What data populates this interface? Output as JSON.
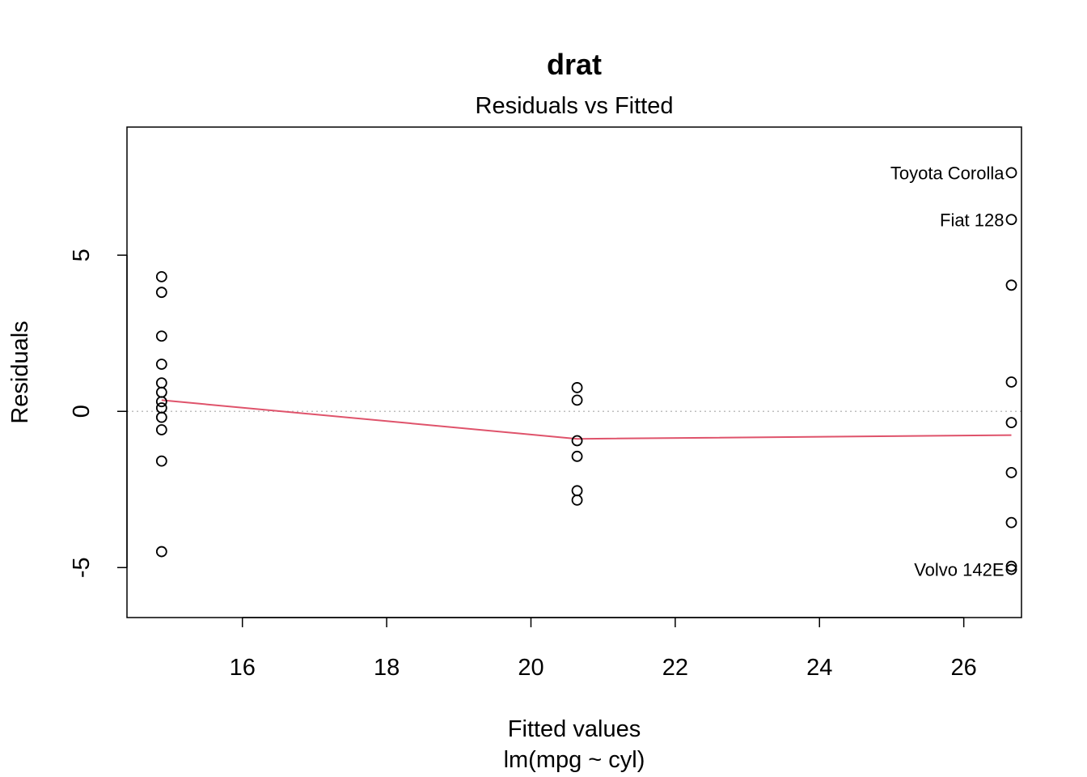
{
  "chart_data": {
    "type": "scatter",
    "title": "drat",
    "subtitle": "Residuals vs Fitted",
    "xlabel": "Fitted values",
    "xlabel_sub": "lm(mpg ~ cyl)",
    "ylabel": "Residuals",
    "xlim": [
      14.4,
      26.8
    ],
    "ylim": [
      -6.6,
      9.1
    ],
    "xticks": [
      16,
      18,
      20,
      22,
      24,
      26
    ],
    "yticks": [
      -5,
      0,
      5
    ],
    "grid": false,
    "reference_line": {
      "y": 0,
      "style": "dotted",
      "color": "#bebebe"
    },
    "points": [
      {
        "x": 14.88,
        "y": 4.31
      },
      {
        "x": 14.88,
        "y": 3.81
      },
      {
        "x": 14.88,
        "y": 2.41
      },
      {
        "x": 14.88,
        "y": 1.51
      },
      {
        "x": 14.88,
        "y": 0.91
      },
      {
        "x": 14.88,
        "y": 0.61
      },
      {
        "x": 14.88,
        "y": 0.31
      },
      {
        "x": 14.88,
        "y": 0.11
      },
      {
        "x": 14.88,
        "y": -0.19
      },
      {
        "x": 14.88,
        "y": -0.59
      },
      {
        "x": 14.88,
        "y": -1.59
      },
      {
        "x": 14.88,
        "y": -4.49
      },
      {
        "x": 20.64,
        "y": 0.76
      },
      {
        "x": 20.64,
        "y": 0.36
      },
      {
        "x": 20.64,
        "y": -0.94
      },
      {
        "x": 20.64,
        "y": -1.44
      },
      {
        "x": 20.64,
        "y": -2.54
      },
      {
        "x": 20.64,
        "y": -2.84
      },
      {
        "x": 26.66,
        "y": 7.64,
        "label": "Toyota Corolla"
      },
      {
        "x": 26.66,
        "y": 6.14,
        "label": "Fiat 128"
      },
      {
        "x": 26.66,
        "y": 4.04
      },
      {
        "x": 26.66,
        "y": 0.94
      },
      {
        "x": 26.66,
        "y": -0.36
      },
      {
        "x": 26.66,
        "y": -1.96
      },
      {
        "x": 26.66,
        "y": -3.56
      },
      {
        "x": 26.66,
        "y": -4.96
      },
      {
        "x": 26.66,
        "y": -5.06,
        "label": "Volvo 142E"
      }
    ],
    "smooth_line": {
      "color": "#DF536B",
      "x": [
        14.88,
        20.64,
        26.66
      ],
      "y": [
        0.36,
        -0.88,
        -0.76
      ]
    }
  }
}
